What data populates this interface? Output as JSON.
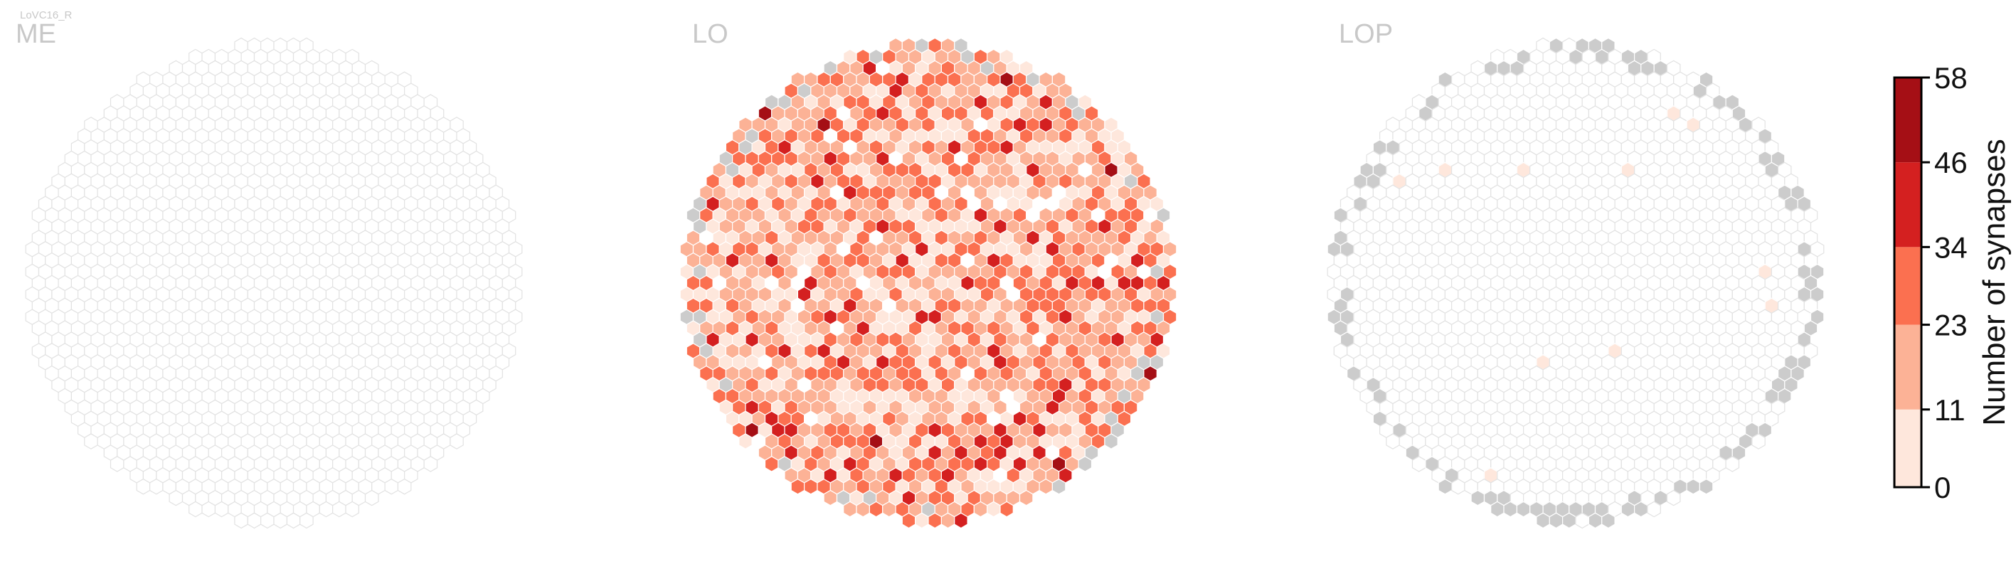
{
  "figure_tag": "LoVC16_R",
  "chart_data": {
    "type": "heatmap",
    "panels": [
      {
        "name": "ME",
        "max_column_synapses": 0,
        "note": "no synapses in any column"
      },
      {
        "name": "LO",
        "max_column_synapses": 58,
        "note": "most columns 1-30 synapses; peak columns 46-58"
      },
      {
        "name": "LOP",
        "max_column_synapses": 11,
        "note": "only a handful of columns with 1-11 synapses"
      }
    ],
    "colorbar": {
      "label": "Number of synapses",
      "ticks": [
        0,
        11,
        23,
        34,
        46,
        58
      ],
      "tick_labels": [
        "0",
        "11",
        "23",
        "34",
        "46",
        "58"
      ],
      "bin_colors": [
        "#fee7dc",
        "#fcb296",
        "#fb7050",
        "#d42020",
        "#a50f15"
      ],
      "range": [
        0,
        58
      ]
    },
    "empty_column_color": "#ffffff",
    "missing_column_color": "#cccccc"
  }
}
